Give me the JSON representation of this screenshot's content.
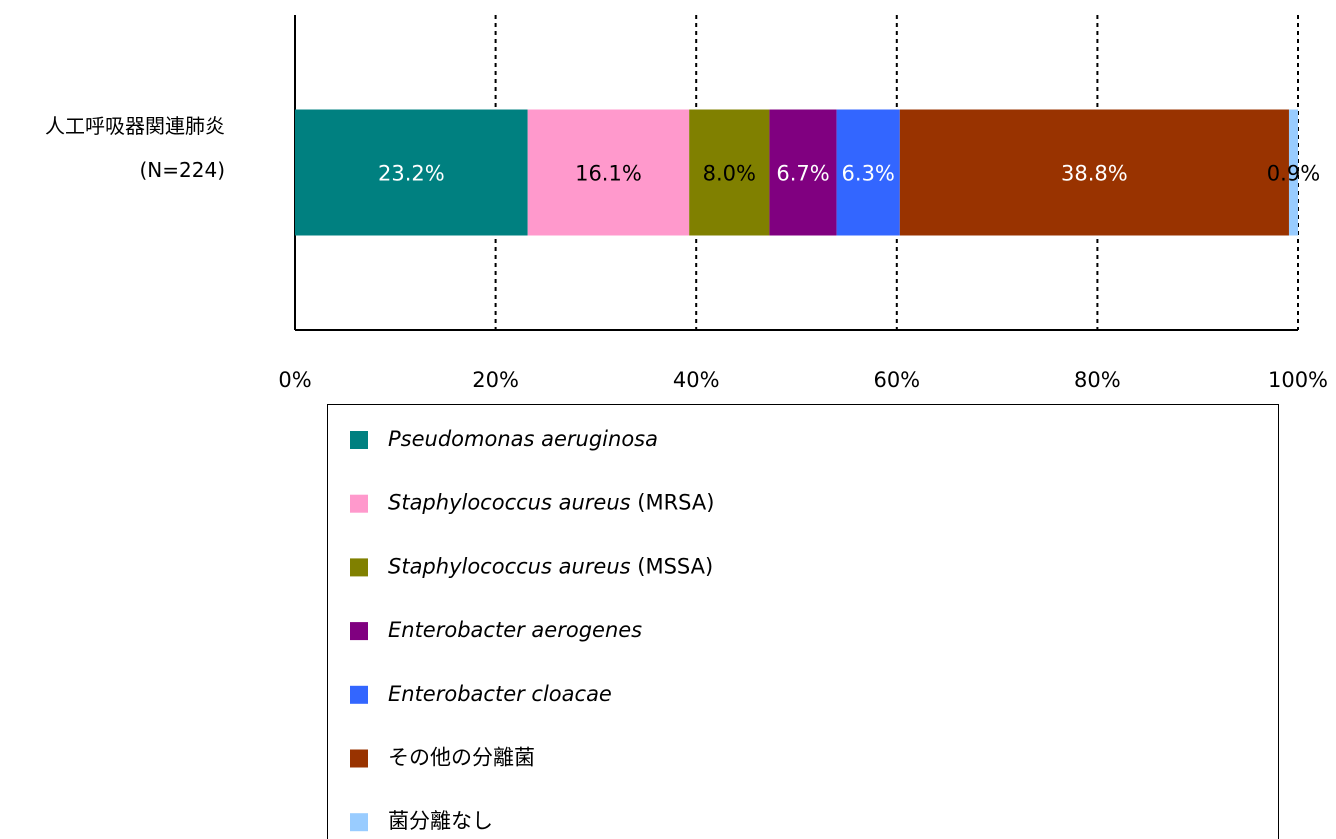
{
  "chart_data": {
    "type": "stacked-bar",
    "orientation": "horizontal",
    "categories": [
      [
        "人工呼吸器関連肺炎",
        "(N=224)"
      ]
    ],
    "series": [
      {
        "name": "Pseudomonas aeruginosa",
        "color": "#008080",
        "label_color": "#ffffff",
        "values": [
          23.2
        ],
        "value_labels": [
          "23.2%"
        ]
      },
      {
        "name": "Staphylococcus aureus (MRSA)",
        "color": "#ff99cc",
        "label_color": "#000000",
        "values": [
          16.1
        ],
        "value_labels": [
          "16.1%"
        ]
      },
      {
        "name": "Staphylococcus aureus (MSSA)",
        "color": "#808000",
        "label_color": "#000000",
        "values": [
          8.0
        ],
        "value_labels": [
          "8.0%"
        ]
      },
      {
        "name": "Enterobacter aerogenes",
        "color": "#800080",
        "label_color": "#ffffff",
        "values": [
          6.7
        ],
        "value_labels": [
          "6.7%"
        ]
      },
      {
        "name": "Enterobacter cloacae",
        "color": "#3366ff",
        "label_color": "#ffffff",
        "values": [
          6.3
        ],
        "value_labels": [
          "6.3%"
        ]
      },
      {
        "name": "その他の分離菌",
        "color": "#993300",
        "label_color": "#ffffff",
        "values": [
          38.8
        ],
        "value_labels": [
          "38.8%"
        ]
      },
      {
        "name": "菌分離なし",
        "color": "#99ccff",
        "label_color": "#000000",
        "values": [
          0.9
        ],
        "value_labels": [
          "0.9%"
        ]
      }
    ],
    "xlim": [
      0,
      100
    ],
    "xticks": [
      {
        "value": 0,
        "label": "0%"
      },
      {
        "value": 20,
        "label": "20%"
      },
      {
        "value": 40,
        "label": "40%"
      },
      {
        "value": 60,
        "label": "60%"
      },
      {
        "value": 80,
        "label": "80%"
      },
      {
        "value": 100,
        "label": "100%"
      }
    ],
    "grid": true,
    "legend": "bottom"
  }
}
